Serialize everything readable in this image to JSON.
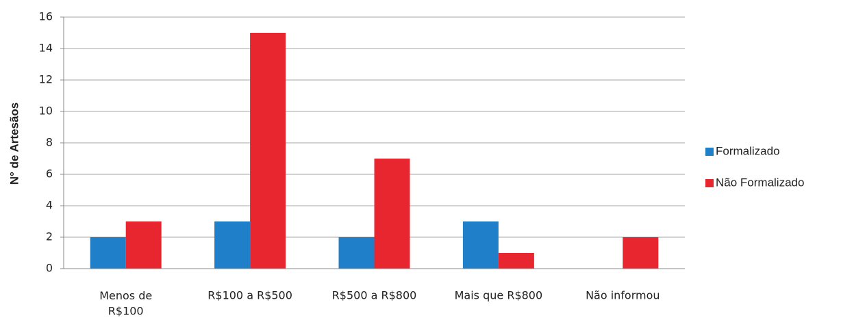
{
  "chart_data": {
    "type": "bar",
    "categories": [
      "Menos de\nR$100",
      "R$100 a R$500",
      "R$500 a R$800",
      "Mais que R$800",
      "Não informou"
    ],
    "series": [
      {
        "name": "Formalizado",
        "color": "#1f7fc8",
        "values": [
          2,
          3,
          2,
          3,
          0
        ]
      },
      {
        "name": "Não Formalizado",
        "color": "#e8262f",
        "values": [
          3,
          15,
          7,
          1,
          2
        ]
      }
    ],
    "ylabel": "N° de Artesãos",
    "ylim": [
      0,
      16
    ],
    "yticks": [
      0,
      2,
      4,
      6,
      8,
      10,
      12,
      14,
      16
    ],
    "grid": true,
    "legend": "right"
  }
}
